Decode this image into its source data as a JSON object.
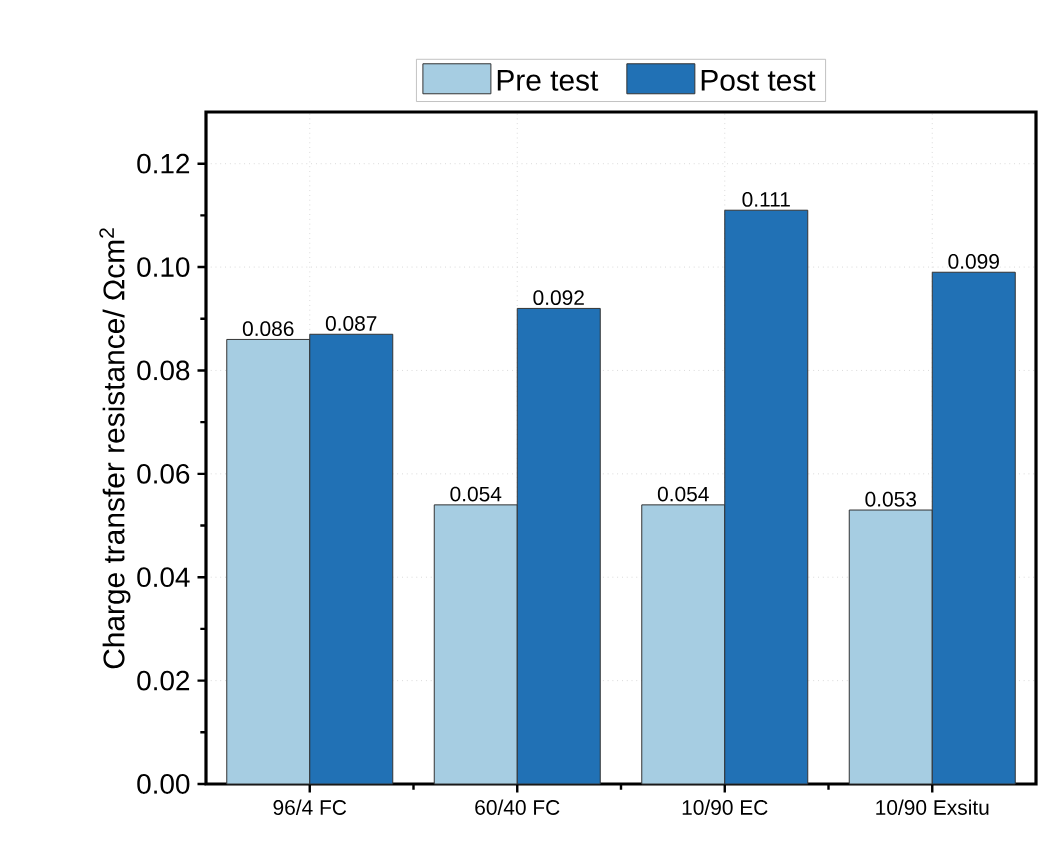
{
  "chart_data": {
    "type": "bar",
    "ylabel": "Charge transfer resistance/ Ωcm$^{2}$",
    "categories": [
      "96/4 FC",
      "60/40 FC",
      "10/90 EC",
      "10/90 Exsitu"
    ],
    "series": [
      {
        "name": "Pre test",
        "color": "#a6cde2",
        "values": [
          0.086,
          0.054,
          0.054,
          0.053
        ]
      },
      {
        "name": "Post test",
        "color": "#2171b5",
        "values": [
          0.087,
          0.092,
          0.111,
          0.099
        ]
      }
    ],
    "ylim": [
      0,
      0.13
    ],
    "yticks": [
      {
        "value": 0,
        "label": "0.00"
      },
      {
        "value": 0.02,
        "label": "0.02"
      },
      {
        "value": 0.04,
        "label": "0.04"
      },
      {
        "value": 0.06,
        "label": "0.06"
      },
      {
        "value": 0.08,
        "label": "0.08"
      },
      {
        "value": 0.1,
        "label": "0.10"
      },
      {
        "value": 0.12,
        "label": "0.12"
      }
    ],
    "grid": true,
    "legend": "top",
    "data_labels": true
  }
}
